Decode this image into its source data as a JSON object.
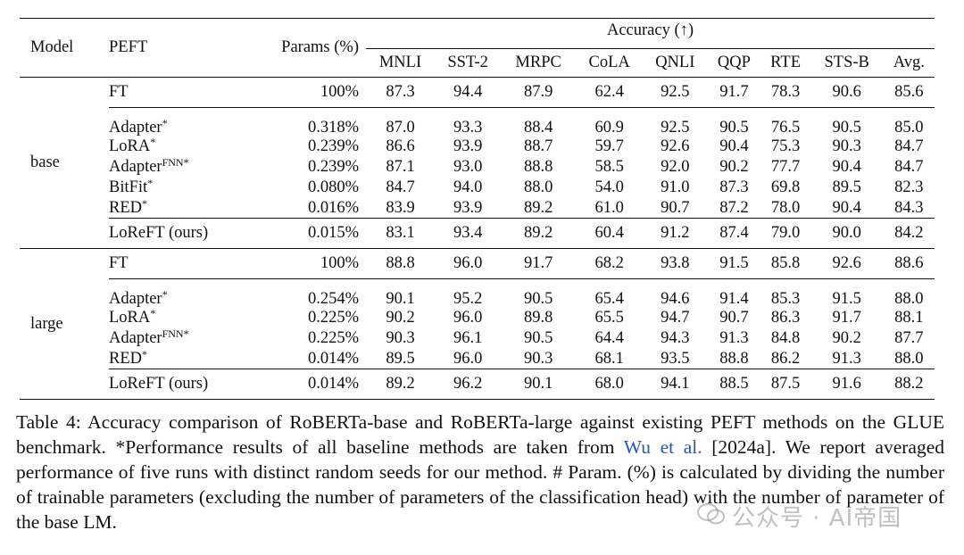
{
  "table": {
    "headers": {
      "model": "Model",
      "peft": "PEFT",
      "params": "Params (%)",
      "accuracy": "Accuracy (↑)",
      "tasks": [
        "MNLI",
        "SST-2",
        "MRPC",
        "CoLA",
        "QNLI",
        "QQP",
        "RTE",
        "STS-B",
        "Avg."
      ]
    },
    "groups": [
      {
        "model": "base",
        "rows": [
          {
            "name": "FT",
            "params": "100%",
            "vals": [
              "87.3",
              "94.4",
              "87.9",
              "62.4",
              "92.5",
              "91.7",
              "78.3",
              "90.6",
              "85.6"
            ],
            "bold": []
          },
          {
            "name": "Adapter*",
            "params": "0.318%",
            "vals": [
              "87.0",
              "93.3",
              "88.4",
              "60.9",
              "92.5",
              "90.5",
              "76.5",
              "90.5",
              "85.0"
            ],
            "bold": [
              5,
              7,
              8
            ]
          },
          {
            "name": "LoRA*",
            "params": "0.239%",
            "vals": [
              "86.6",
              "93.9",
              "88.7",
              "59.7",
              "92.6",
              "90.4",
              "75.3",
              "90.3",
              "84.7"
            ],
            "bold": [
              4
            ]
          },
          {
            "name": "AdapterFNN*",
            "params": "0.239%",
            "vals": [
              "87.1",
              "93.0",
              "88.8",
              "58.5",
              "92.0",
              "90.2",
              "77.7",
              "90.4",
              "84.7"
            ],
            "bold": [
              0
            ]
          },
          {
            "name": "BitFit*",
            "params": "0.080%",
            "vals": [
              "84.7",
              "94.0",
              "88.0",
              "54.0",
              "91.0",
              "87.3",
              "69.8",
              "89.5",
              "82.3"
            ],
            "bold": [
              1
            ]
          },
          {
            "name": "RED*",
            "params": "0.016%",
            "vals": [
              "83.9",
              "93.9",
              "89.2",
              "61.0",
              "90.7",
              "87.2",
              "78.0",
              "90.4",
              "84.3"
            ],
            "bold": [
              2,
              3
            ]
          },
          {
            "name": "LoReFT (ours)",
            "params": "0.015%",
            "vals": [
              "83.1",
              "93.4",
              "89.2",
              "60.4",
              "91.2",
              "87.4",
              "79.0",
              "90.0",
              "84.2"
            ],
            "bold": [
              2,
              6
            ]
          }
        ]
      },
      {
        "model": "large",
        "rows": [
          {
            "name": "FT",
            "params": "100%",
            "vals": [
              "88.8",
              "96.0",
              "91.7",
              "68.2",
              "93.8",
              "91.5",
              "85.8",
              "92.6",
              "88.6"
            ],
            "bold": []
          },
          {
            "name": "Adapter*",
            "params": "0.254%",
            "vals": [
              "90.1",
              "95.2",
              "90.5",
              "65.4",
              "94.6",
              "91.4",
              "85.3",
              "91.5",
              "88.0"
            ],
            "bold": [
              5
            ]
          },
          {
            "name": "LoRA*",
            "params": "0.225%",
            "vals": [
              "90.2",
              "96.0",
              "89.8",
              "65.5",
              "94.7",
              "90.7",
              "86.3",
              "91.7",
              "88.1"
            ],
            "bold": [
              4,
              7
            ]
          },
          {
            "name": "AdapterFNN*",
            "params": "0.225%",
            "vals": [
              "90.3",
              "96.1",
              "90.5",
              "64.4",
              "94.3",
              "91.3",
              "84.8",
              "90.2",
              "87.7"
            ],
            "bold": [
              0,
              2
            ]
          },
          {
            "name": "RED*",
            "params": "0.014%",
            "vals": [
              "89.5",
              "96.0",
              "90.3",
              "68.1",
              "93.5",
              "88.8",
              "86.2",
              "91.3",
              "88.0"
            ],
            "bold": [
              3
            ]
          },
          {
            "name": "LoReFT (ours)",
            "params": "0.014%",
            "vals": [
              "89.2",
              "96.2",
              "90.1",
              "68.0",
              "94.1",
              "88.5",
              "87.5",
              "91.6",
              "88.2"
            ],
            "bold": [
              1,
              6,
              8
            ]
          }
        ]
      }
    ]
  },
  "caption": {
    "part1": "Table 4: Accuracy comparison of RoBERTa-base and RoBERTa-large against existing PEFT methods on the GLUE benchmark. *Performance results of all baseline methods are taken from ",
    "link": "Wu et al.",
    "part2": " [2024a]. We report averaged performance of five runs with distinct random seeds for our method. # Param. (%) is calculated by dividing the number of trainable parameters (excluding the number of parameters of the classification head) with the number of parameter of the base LM."
  },
  "watermark": {
    "text": "公众号 · AI帝国",
    "icon": "wechat-icon"
  },
  "colors": {
    "link": "#2a56b3",
    "text": "#111111"
  }
}
